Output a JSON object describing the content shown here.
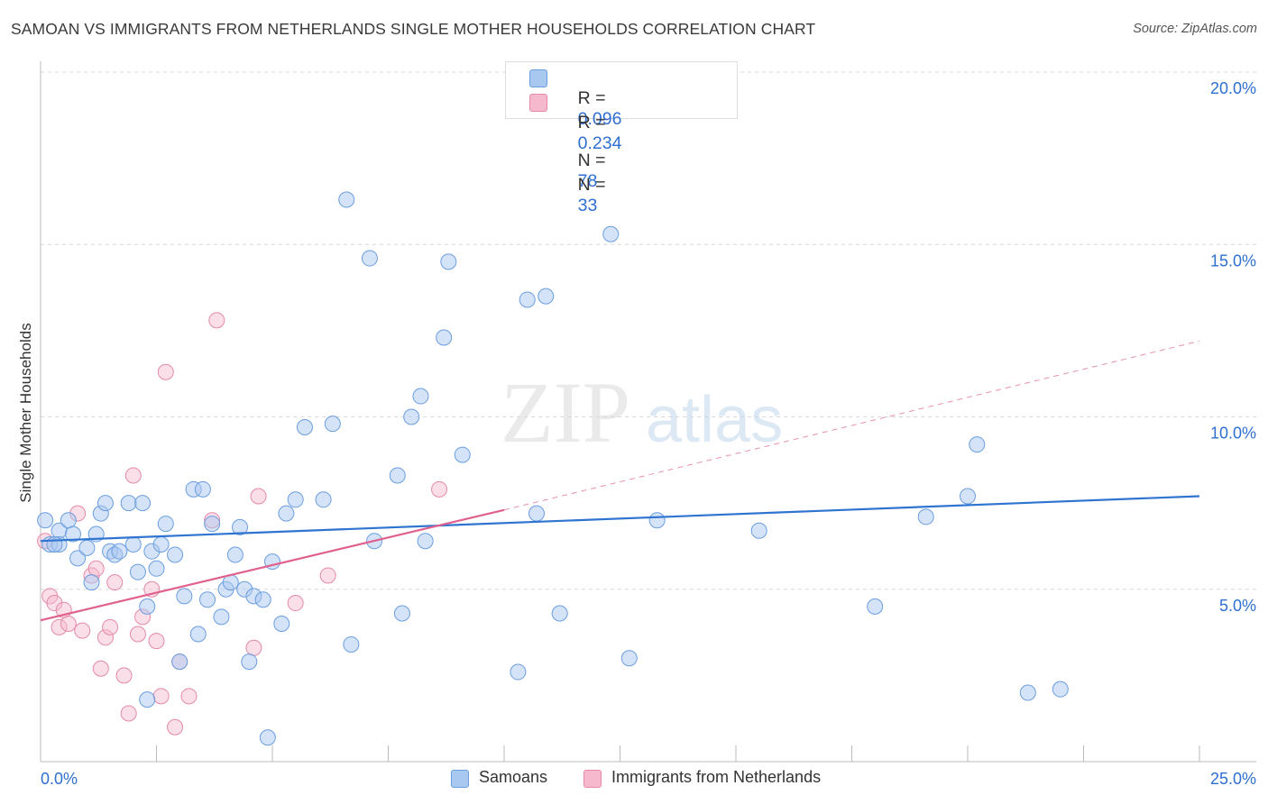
{
  "title": "SAMOAN VS IMMIGRANTS FROM NETHERLANDS SINGLE MOTHER HOUSEHOLDS CORRELATION CHART",
  "source": "Source: ZipAtlas.com",
  "watermark": {
    "zip": "ZIP",
    "atlas": "atlas"
  },
  "legend": {
    "r_label": "R =",
    "n_label": "N =",
    "rows": [
      {
        "r": "0.096",
        "n": "78",
        "color": "#a9c8f0"
      },
      {
        "r": "0.234",
        "n": "33",
        "color": "#f6b8cc"
      }
    ]
  },
  "colors": {
    "blue_fill": "#a9c8f0",
    "blue_stroke": "#6b9ee0",
    "blue_line": "#2f74d0",
    "pink_fill": "#f6b8cc",
    "pink_stroke": "#e48aa8",
    "pink_line": "#e0608e",
    "axis_label": "#2f6fcf"
  },
  "chart_data": {
    "type": "scatter",
    "title": "SAMOAN VS IMMIGRANTS FROM NETHERLANDS SINGLE MOTHER HOUSEHOLDS CORRELATION CHART",
    "xlabel": "",
    "ylabel": "Single Mother Households",
    "xlim": [
      0,
      25
    ],
    "ylim": [
      0,
      20
    ],
    "x_tick_labels": [
      "0.0%",
      "25.0%"
    ],
    "y_tick_values": [
      5,
      10,
      15,
      20
    ],
    "y_tick_labels": [
      "5.0%",
      "10.0%",
      "15.0%",
      "20.0%"
    ],
    "grid": "horizontal dashed",
    "legend_position": "top-center",
    "series": [
      {
        "name": "Samoans",
        "trend": {
          "x": [
            0,
            25
          ],
          "y": [
            6.4,
            7.7
          ],
          "style": "solid"
        },
        "points": [
          [
            0.1,
            7.0
          ],
          [
            0.2,
            6.3
          ],
          [
            0.4,
            6.7
          ],
          [
            0.4,
            6.3
          ],
          [
            0.6,
            7.0
          ],
          [
            0.7,
            6.6
          ],
          [
            0.8,
            5.9
          ],
          [
            1.0,
            6.2
          ],
          [
            1.1,
            5.2
          ],
          [
            1.2,
            6.6
          ],
          [
            1.3,
            7.2
          ],
          [
            1.4,
            7.5
          ],
          [
            1.5,
            6.1
          ],
          [
            1.6,
            6.0
          ],
          [
            1.7,
            6.1
          ],
          [
            1.9,
            7.5
          ],
          [
            2.0,
            6.3
          ],
          [
            2.1,
            5.5
          ],
          [
            2.2,
            7.5
          ],
          [
            2.3,
            4.5
          ],
          [
            2.4,
            6.1
          ],
          [
            2.5,
            5.6
          ],
          [
            2.6,
            6.3
          ],
          [
            2.7,
            6.9
          ],
          [
            2.9,
            6.0
          ],
          [
            3.0,
            2.9
          ],
          [
            3.1,
            4.8
          ],
          [
            3.3,
            7.9
          ],
          [
            3.4,
            3.7
          ],
          [
            3.5,
            7.9
          ],
          [
            3.6,
            4.7
          ],
          [
            3.7,
            6.9
          ],
          [
            3.9,
            4.2
          ],
          [
            4.0,
            5.0
          ],
          [
            4.1,
            5.2
          ],
          [
            4.2,
            6.0
          ],
          [
            4.3,
            6.8
          ],
          [
            4.4,
            5.0
          ],
          [
            4.5,
            2.9
          ],
          [
            4.6,
            4.8
          ],
          [
            4.8,
            4.7
          ],
          [
            4.9,
            0.7
          ],
          [
            5.0,
            5.8
          ],
          [
            5.2,
            4.0
          ],
          [
            5.3,
            7.2
          ],
          [
            5.5,
            7.6
          ],
          [
            5.7,
            9.7
          ],
          [
            6.1,
            7.6
          ],
          [
            6.3,
            9.8
          ],
          [
            6.6,
            16.3
          ],
          [
            6.7,
            3.4
          ],
          [
            7.1,
            14.6
          ],
          [
            7.2,
            6.4
          ],
          [
            7.7,
            8.3
          ],
          [
            7.8,
            4.3
          ],
          [
            8.0,
            10.0
          ],
          [
            8.2,
            10.6
          ],
          [
            8.3,
            6.4
          ],
          [
            8.7,
            12.3
          ],
          [
            8.8,
            14.5
          ],
          [
            9.1,
            8.9
          ],
          [
            10.3,
            2.6
          ],
          [
            10.5,
            13.4
          ],
          [
            10.7,
            7.2
          ],
          [
            10.9,
            13.5
          ],
          [
            11.2,
            4.3
          ],
          [
            12.3,
            15.3
          ],
          [
            12.7,
            3.0
          ],
          [
            13.3,
            7.0
          ],
          [
            15.5,
            6.7
          ],
          [
            18.0,
            4.5
          ],
          [
            19.1,
            7.1
          ],
          [
            20.0,
            7.7
          ],
          [
            20.2,
            9.2
          ],
          [
            21.3,
            2.0
          ],
          [
            22.0,
            2.1
          ],
          [
            0.3,
            6.3
          ],
          [
            2.3,
            1.8
          ]
        ]
      },
      {
        "name": "Immigrants from Netherlands",
        "trend": {
          "x": [
            0,
            10
          ],
          "y": [
            4.1,
            7.3
          ],
          "extended": {
            "x": [
              10,
              25
            ],
            "y": [
              7.3,
              12.2
            ]
          },
          "style": "solid+dashed"
        },
        "points": [
          [
            0.1,
            6.4
          ],
          [
            0.2,
            4.8
          ],
          [
            0.3,
            4.6
          ],
          [
            0.4,
            3.9
          ],
          [
            0.5,
            4.4
          ],
          [
            0.6,
            4.0
          ],
          [
            0.8,
            7.2
          ],
          [
            0.9,
            3.8
          ],
          [
            1.1,
            5.4
          ],
          [
            1.2,
            5.6
          ],
          [
            1.3,
            2.7
          ],
          [
            1.4,
            3.6
          ],
          [
            1.5,
            3.9
          ],
          [
            1.6,
            5.2
          ],
          [
            1.8,
            2.5
          ],
          [
            1.9,
            1.4
          ],
          [
            2.0,
            8.3
          ],
          [
            2.1,
            3.7
          ],
          [
            2.2,
            4.2
          ],
          [
            2.4,
            5.0
          ],
          [
            2.5,
            3.5
          ],
          [
            2.6,
            1.9
          ],
          [
            2.7,
            11.3
          ],
          [
            2.9,
            1.0
          ],
          [
            3.0,
            2.9
          ],
          [
            3.2,
            1.9
          ],
          [
            3.7,
            7.0
          ],
          [
            3.8,
            12.8
          ],
          [
            4.6,
            3.3
          ],
          [
            4.7,
            7.7
          ],
          [
            5.5,
            4.6
          ],
          [
            6.2,
            5.4
          ],
          [
            8.6,
            7.9
          ]
        ]
      }
    ]
  },
  "bottom_legend": [
    {
      "label": "Samoans"
    },
    {
      "label": "Immigrants from Netherlands"
    }
  ]
}
